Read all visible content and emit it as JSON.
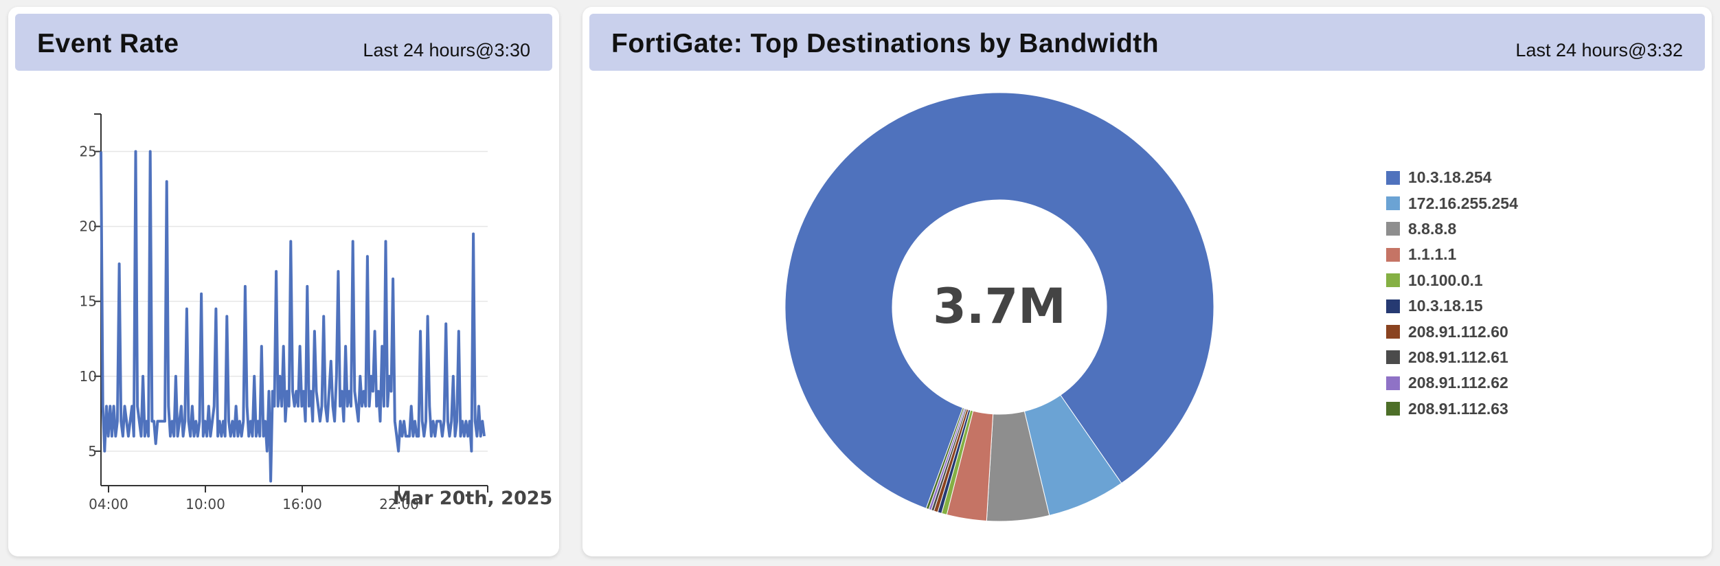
{
  "event_rate": {
    "title": "Event Rate",
    "time_range": "Last 24 hours@3:30",
    "date_label": "Mar 20th, 2025"
  },
  "top_destinations": {
    "title": "FortiGate: Top Destinations by Bandwidth",
    "time_range": "Last 24 hours@3:32",
    "center_value": "3.7M"
  },
  "chart_data": [
    {
      "type": "line",
      "title": "Event Rate",
      "x_start": "03:30",
      "x_end": "03:30",
      "x_tick_labels": [
        "04:00",
        "10:00",
        "16:00",
        "22:00"
      ],
      "y_tick_labels": [
        "5",
        "10",
        "15",
        "20",
        "25"
      ],
      "ylim": [
        2.7,
        27.5
      ],
      "grid": true,
      "color": "#4f72bd",
      "series": [
        {
          "values": [
            25,
            8,
            5,
            8,
            6,
            8,
            6,
            8,
            6,
            7,
            17.5,
            7,
            6,
            8,
            7,
            6,
            7,
            8,
            6,
            25,
            8,
            7,
            6,
            10,
            6,
            7,
            6,
            25,
            7,
            7,
            5.5,
            7,
            7,
            7,
            7,
            7,
            23,
            8,
            6,
            7,
            6,
            10,
            6,
            7,
            8,
            6,
            7,
            14.5,
            7,
            6,
            8,
            6,
            7,
            6,
            7,
            15.5,
            6,
            7,
            6,
            8,
            6,
            7,
            8,
            14.5,
            6,
            7,
            6,
            7,
            6,
            14,
            7,
            6,
            7,
            6,
            8,
            6,
            7,
            6,
            7,
            16,
            8,
            6,
            7,
            6,
            10,
            6,
            7,
            6,
            12,
            6,
            7,
            5,
            9,
            3,
            9,
            8,
            17,
            8,
            10,
            8,
            12,
            7,
            9,
            8,
            19,
            9,
            8,
            9,
            8,
            12,
            8,
            9,
            7,
            16,
            8,
            9,
            7,
            13,
            9,
            8,
            7,
            8,
            14,
            8,
            7,
            9,
            11,
            8,
            7,
            10,
            17,
            8,
            9,
            7,
            12,
            8,
            9,
            8,
            19,
            9,
            8,
            7,
            10,
            8,
            9,
            8,
            18,
            8,
            10,
            9,
            13,
            8,
            9,
            7,
            12,
            8,
            19,
            8,
            10,
            9,
            16.5,
            7,
            6,
            5,
            7,
            6,
            7,
            6,
            6,
            6,
            8,
            6,
            7,
            6,
            6,
            13,
            7,
            6,
            7,
            14,
            8,
            6,
            7,
            6,
            7,
            7,
            7,
            6,
            7,
            13.5,
            7,
            6,
            7,
            10,
            6,
            7,
            13,
            6,
            7,
            6,
            7,
            6,
            7,
            5,
            19.5,
            7,
            6,
            8,
            6,
            7,
            6
          ]
        }
      ]
    },
    {
      "type": "pie",
      "donut": true,
      "title": "FortiGate: Top Destinations by Bandwidth",
      "center_label": "3.7M",
      "legend_position": "right",
      "categories": [
        "10.3.18.254",
        "172.16.255.254",
        "8.8.8.8",
        "1.1.1.1",
        "10.100.0.1",
        "10.3.18.15",
        "208.91.112.60",
        "208.91.112.61",
        "208.91.112.62",
        "208.91.112.63"
      ],
      "values": [
        84.8,
        5.9,
        4.7,
        3.0,
        0.4,
        0.3,
        0.3,
        0.2,
        0.2,
        0.2
      ],
      "colors": [
        "#4f72bd",
        "#6ba3d4",
        "#8e8e8e",
        "#c57465",
        "#85b044",
        "#263a72",
        "#8a4320",
        "#4b4b4b",
        "#8f72c6",
        "#4d6f28"
      ]
    }
  ]
}
